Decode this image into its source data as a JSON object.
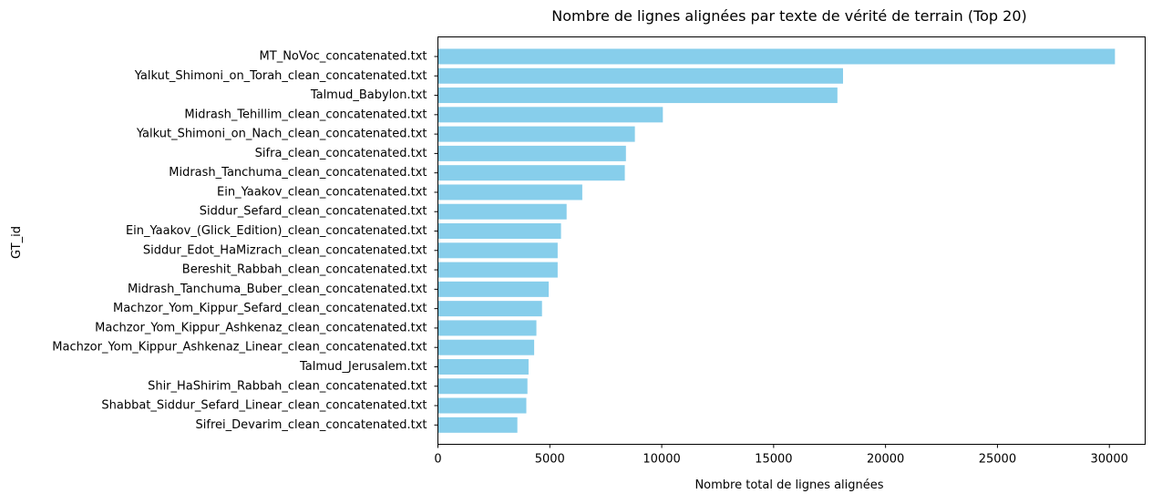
{
  "chart_data": {
    "type": "bar",
    "orientation": "horizontal",
    "title": "Nombre de lignes alignées par texte de vérité de terrain (Top 20)",
    "xlabel": "Nombre total de lignes alignées",
    "ylabel": "GT_id",
    "xlim": [
      0,
      31600
    ],
    "xticks": [
      "0",
      "5000",
      "10000",
      "15000",
      "20000",
      "25000",
      "30000"
    ],
    "grid": false,
    "bar_color": "#87CEEB",
    "categories": [
      "MT_NoVoc_concatenated.txt",
      "Yalkut_Shimoni_on_Torah_clean_concatenated.txt",
      "Talmud_Babylon.txt",
      "Midrash_Tehillim_clean_concatenated.txt",
      "Yalkut_Shimoni_on_Nach_clean_concatenated.txt",
      "Sifra_clean_concatenated.txt",
      "Midrash_Tanchuma_clean_concatenated.txt",
      "Ein_Yaakov_clean_concatenated.txt",
      "Siddur_Sefard_clean_concatenated.txt",
      "Ein_Yaakov_(Glick_Edition)_clean_concatenated.txt",
      "Siddur_Edot_HaMizrach_clean_concatenated.txt",
      "Bereshit_Rabbah_clean_concatenated.txt",
      "Midrash_Tanchuma_Buber_clean_concatenated.txt",
      "Machzor_Yom_Kippur_Sefard_clean_concatenated.txt",
      "Machzor_Yom_Kippur_Ashkenaz_clean_concatenated.txt",
      "Machzor_Yom_Kippur_Ashkenaz_Linear_clean_concatenated.txt",
      "Talmud_Jerusalem.txt",
      "Shir_HaShirim_Rabbah_clean_concatenated.txt",
      "Shabbat_Siddur_Sefard_Linear_clean_concatenated.txt",
      "Sifrei_Devarim_clean_concatenated.txt"
    ],
    "values": [
      30250,
      18100,
      17850,
      10050,
      8800,
      8400,
      8350,
      6450,
      5750,
      5500,
      5350,
      5350,
      4950,
      4650,
      4400,
      4300,
      4050,
      4000,
      3950,
      3550
    ]
  }
}
